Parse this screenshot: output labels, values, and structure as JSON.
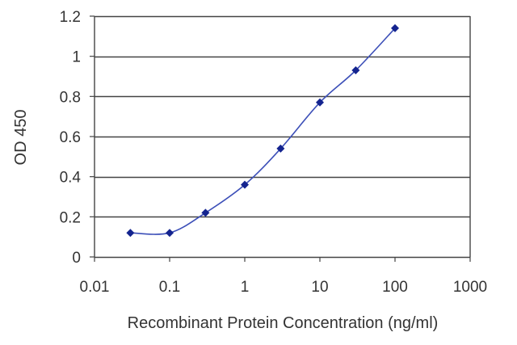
{
  "chart_data": {
    "type": "line",
    "title": "",
    "xlabel": "Recombinant Protein Concentration (ng/ml)",
    "ylabel": "OD 450",
    "xscale": "log",
    "xlim": [
      0.01,
      1000
    ],
    "ylim": [
      0,
      1.2
    ],
    "grid": "horizontal",
    "x_ticks": [
      0.01,
      0.1,
      1,
      10,
      100,
      1000
    ],
    "x_tick_labels": [
      "0.01",
      "0.1",
      "1",
      "10",
      "100",
      "1000"
    ],
    "y_ticks": [
      0,
      0.2,
      0.4,
      0.6,
      0.8,
      1,
      1.2
    ],
    "y_tick_labels": [
      "0",
      "0.2",
      "0.4",
      "0.6",
      "0.8",
      "1",
      "1.2"
    ],
    "series": [
      {
        "x": [
          0.03,
          0.1,
          0.3,
          1,
          3,
          10,
          30,
          100
        ],
        "y": [
          0.12,
          0.12,
          0.22,
          0.36,
          0.54,
          0.77,
          0.93,
          1.14
        ]
      }
    ],
    "colors": {
      "line": "#3c4fb8",
      "marker": "#14248f",
      "grid": "#444444",
      "axis": "#444444"
    }
  }
}
